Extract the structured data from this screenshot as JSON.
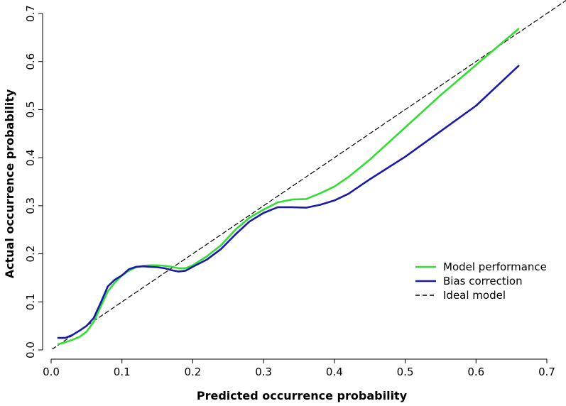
{
  "chart_data": {
    "type": "line",
    "title": "",
    "xlabel": "Predicted occurrence probability",
    "ylabel": "Actual occurrence probability",
    "xlim": [
      0,
      0.7
    ],
    "ylim": [
      0,
      0.7
    ],
    "xticks": [
      "0.0",
      "0.1",
      "0.2",
      "0.3",
      "0.4",
      "0.5",
      "0.6",
      "0.7"
    ],
    "yticks": [
      "0.0",
      "0.1",
      "0.2",
      "0.3",
      "0.4",
      "0.5",
      "0.6",
      "0.7"
    ],
    "legend_position": "bottom-right",
    "grid": false,
    "series": [
      {
        "name": "Model performance",
        "color": "#33dd33",
        "style": "solid",
        "x": [
          0.01,
          0.02,
          0.03,
          0.04,
          0.05,
          0.06,
          0.07,
          0.08,
          0.09,
          0.1,
          0.11,
          0.12,
          0.13,
          0.14,
          0.15,
          0.16,
          0.17,
          0.18,
          0.19,
          0.2,
          0.22,
          0.24,
          0.26,
          0.28,
          0.3,
          0.32,
          0.34,
          0.36,
          0.38,
          0.4,
          0.42,
          0.45,
          0.5,
          0.55,
          0.6,
          0.66
        ],
        "y": [
          0.012,
          0.016,
          0.021,
          0.027,
          0.038,
          0.058,
          0.09,
          0.122,
          0.14,
          0.155,
          0.165,
          0.172,
          0.175,
          0.176,
          0.176,
          0.175,
          0.173,
          0.17,
          0.17,
          0.176,
          0.195,
          0.218,
          0.25,
          0.275,
          0.292,
          0.307,
          0.313,
          0.314,
          0.326,
          0.34,
          0.36,
          0.396,
          0.463,
          0.53,
          0.593,
          0.668
        ]
      },
      {
        "name": "Bias correction",
        "color": "#1a1aaa",
        "style": "solid",
        "x": [
          0.01,
          0.02,
          0.03,
          0.04,
          0.05,
          0.06,
          0.07,
          0.08,
          0.09,
          0.1,
          0.11,
          0.12,
          0.13,
          0.14,
          0.15,
          0.16,
          0.17,
          0.18,
          0.19,
          0.2,
          0.22,
          0.24,
          0.26,
          0.28,
          0.3,
          0.32,
          0.34,
          0.36,
          0.38,
          0.4,
          0.42,
          0.45,
          0.5,
          0.55,
          0.6,
          0.66
        ],
        "y": [
          0.025,
          0.025,
          0.031,
          0.04,
          0.05,
          0.066,
          0.098,
          0.132,
          0.146,
          0.155,
          0.168,
          0.173,
          0.174,
          0.173,
          0.172,
          0.17,
          0.166,
          0.163,
          0.165,
          0.173,
          0.188,
          0.21,
          0.24,
          0.267,
          0.285,
          0.297,
          0.297,
          0.296,
          0.302,
          0.311,
          0.325,
          0.355,
          0.402,
          0.455,
          0.508,
          0.591
        ]
      },
      {
        "name": "Ideal model",
        "color": "#000000",
        "style": "dashed",
        "x": [
          -0.04,
          0.74
        ],
        "y": [
          -0.04,
          0.74
        ]
      }
    ]
  }
}
